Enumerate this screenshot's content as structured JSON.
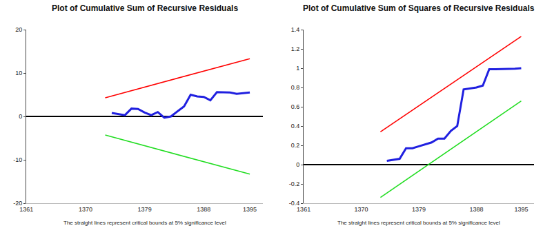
{
  "chart_data": [
    {
      "type": "line",
      "title": "Plot of Cumulative Sum of Recursive Residuals",
      "annotation": "The straight lines represent critical bounds at 5% significance level",
      "x": [
        1374,
        1375,
        1376,
        1377,
        1378,
        1379,
        1380,
        1381,
        1382,
        1383,
        1384,
        1385,
        1386,
        1387,
        1388,
        1389,
        1390,
        1391,
        1392,
        1393,
        1394,
        1395
      ],
      "series": [
        {
          "color": "#ff0000",
          "x": [
            1373,
            1395
          ],
          "values": [
            4.3,
            13.3
          ]
        },
        {
          "color": "#22dd22",
          "x": [
            1373,
            1395
          ],
          "values": [
            -4.3,
            -13.3
          ]
        },
        {
          "color": "#2020e0",
          "values": [
            0.8,
            0.5,
            0.3,
            1.8,
            1.7,
            0.9,
            0.3,
            1.0,
            -0.3,
            0.0,
            1.2,
            2.3,
            5.0,
            4.6,
            4.5,
            3.7,
            5.6,
            5.5,
            5.5,
            5.2,
            5.3,
            5.5
          ]
        }
      ],
      "xlim": [
        1361,
        1397
      ],
      "ylim": [
        -20,
        20
      ],
      "xticks": [
        1361,
        1370,
        1379,
        1388,
        1395
      ],
      "yticks": [
        -20,
        -10,
        0,
        10,
        20
      ],
      "grid": false
    },
    {
      "type": "line",
      "title": "Plot of Cumulative Sum of Squares of Recursive Residuals",
      "annotation": "The straight lines represent critical bounds at 5% significance level",
      "x": [
        1374,
        1375,
        1376,
        1377,
        1378,
        1379,
        1380,
        1381,
        1382,
        1383,
        1384,
        1385,
        1386,
        1387,
        1388,
        1389,
        1390,
        1391,
        1392,
        1393,
        1394,
        1395
      ],
      "series": [
        {
          "color": "#ff0000",
          "x": [
            1373,
            1395
          ],
          "values": [
            0.34,
            1.33
          ]
        },
        {
          "color": "#22dd22",
          "x": [
            1373,
            1395
          ],
          "values": [
            -0.34,
            0.66
          ]
        },
        {
          "color": "#2020e0",
          "values": [
            0.04,
            0.05,
            0.06,
            0.17,
            0.17,
            0.19,
            0.21,
            0.23,
            0.27,
            0.27,
            0.35,
            0.4,
            0.78,
            0.79,
            0.8,
            0.82,
            0.99,
            0.99,
            0.99,
            0.99,
            0.995,
            1.0
          ]
        }
      ],
      "xlim": [
        1361,
        1397
      ],
      "ylim": [
        -0.4,
        1.4
      ],
      "xticks": [
        1361,
        1370,
        1379,
        1388,
        1395
      ],
      "yticks": [
        -0.4,
        -0.2,
        0.0,
        0.2,
        0.4,
        0.6,
        0.8,
        1.0,
        1.2,
        1.4
      ],
      "grid": false
    }
  ]
}
